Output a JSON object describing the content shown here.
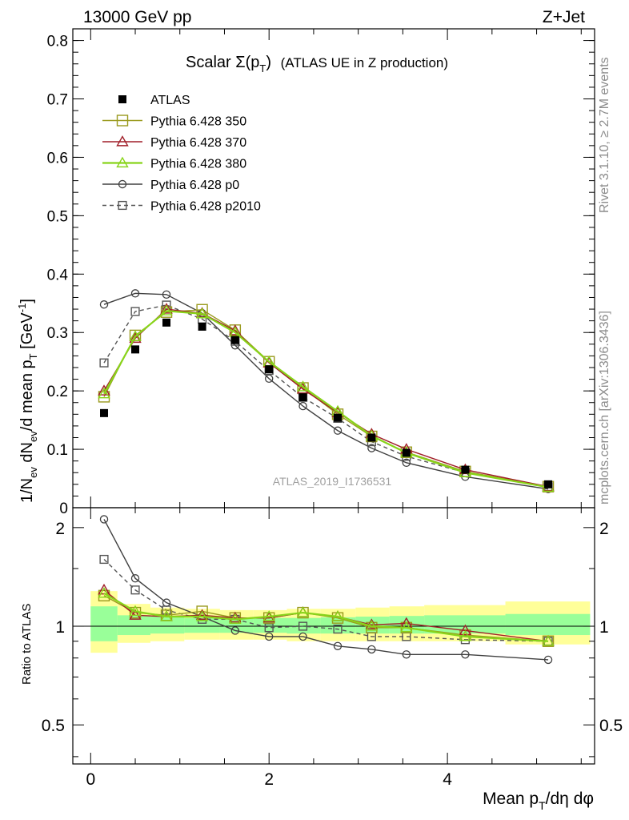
{
  "header": {
    "left": "13000 GeV pp",
    "right": "Z+Jet"
  },
  "side_labels": {
    "rivet": "Rivet 3.1.10, ≥ 2.7M events",
    "mcplots": "mcplots.cern.ch [arXiv:1306.3436]"
  },
  "analysis_id": "ATLAS_2019_I1736531",
  "chart_data": [
    {
      "type": "scatter",
      "panel": "main",
      "title_main": "Scalar Σ(p",
      "title_sub": "T",
      "title_close": ")",
      "title_rest": "(ATLAS UE in Z production)",
      "ylabel_parts": [
        "1/N",
        "ev",
        " dN",
        "ev",
        "/d mean p",
        "T",
        " [GeV",
        "-1",
        "]"
      ],
      "ylim": [
        0,
        0.82
      ],
      "xlim": [
        -0.2,
        5.65
      ],
      "yticks": [
        0,
        0.1,
        0.2,
        0.3,
        0.4,
        0.5,
        0.6,
        0.7,
        0.8
      ],
      "ytick_labels": [
        "0",
        "0.1",
        "0.2",
        "0.3",
        "0.4",
        "0.5",
        "0.6",
        "0.7",
        "0.8"
      ],
      "x": [
        0.15,
        0.5,
        0.85,
        1.25,
        1.62,
        2.0,
        2.38,
        2.77,
        3.15,
        3.54,
        4.2,
        5.13
      ],
      "series": [
        {
          "name": "ATLAS",
          "style": "data",
          "color": "#000000",
          "values": [
            0.162,
            0.271,
            0.317,
            0.31,
            0.287,
            0.237,
            0.189,
            0.154,
            0.12,
            0.094,
            0.065,
            0.04
          ]
        },
        {
          "name": "Pythia 6.428 350",
          "style": "square",
          "color": "#9a9a1e",
          "values": [
            0.19,
            0.295,
            0.335,
            0.339,
            0.304,
            0.25,
            0.205,
            0.16,
            0.122,
            0.095,
            0.062,
            0.036
          ]
        },
        {
          "name": "Pythia 6.428 370",
          "style": "triangle",
          "color": "#a01e28",
          "values": [
            0.2,
            0.29,
            0.34,
            0.333,
            0.303,
            0.248,
            0.203,
            0.163,
            0.126,
            0.1,
            0.065,
            0.036
          ]
        },
        {
          "name": "Pythia 6.428 380",
          "style": "triangle",
          "color": "#88d41a",
          "values": [
            0.195,
            0.293,
            0.337,
            0.332,
            0.3,
            0.25,
            0.207,
            0.165,
            0.123,
            0.094,
            0.06,
            0.035
          ]
        },
        {
          "name": "Pythia 6.428 p0",
          "style": "circle",
          "color": "#404040",
          "values": [
            0.348,
            0.367,
            0.365,
            0.333,
            0.278,
            0.221,
            0.174,
            0.132,
            0.102,
            0.077,
            0.053,
            0.032
          ]
        },
        {
          "name": "Pythia 6.428 p2010",
          "style": "square-dashed",
          "color": "#555555",
          "values": [
            0.248,
            0.336,
            0.347,
            0.323,
            0.285,
            0.235,
            0.189,
            0.153,
            0.113,
            0.088,
            0.06,
            0.036
          ]
        }
      ],
      "legend_position": "top-left"
    },
    {
      "type": "scatter",
      "panel": "ratio",
      "ylabel": "Ratio to ATLAS",
      "log_scale": true,
      "ylim": [
        0.38,
        2.3
      ],
      "yticks": [
        0.5,
        1,
        2
      ],
      "ytick_labels": [
        "0.5",
        "1",
        "2"
      ],
      "xlabel_parts": [
        "Mean p",
        "T",
        "/dη dφ"
      ],
      "xticks": [
        0,
        2,
        4
      ],
      "xtick_labels": [
        "0",
        "2",
        "4"
      ],
      "bands": [
        {
          "x0": 0.0,
          "x1": 0.3,
          "yellow": [
            0.83,
            1.28
          ],
          "green": [
            0.9,
            1.15
          ]
        },
        {
          "x0": 0.3,
          "x1": 0.67,
          "yellow": [
            0.89,
            1.17
          ],
          "green": [
            0.94,
            1.08
          ]
        },
        {
          "x0": 0.67,
          "x1": 1.05,
          "yellow": [
            0.9,
            1.14
          ],
          "green": [
            0.95,
            1.07
          ]
        },
        {
          "x0": 1.05,
          "x1": 1.45,
          "yellow": [
            0.91,
            1.13
          ],
          "green": [
            0.955,
            1.06
          ]
        },
        {
          "x0": 1.45,
          "x1": 1.82,
          "yellow": [
            0.91,
            1.12
          ],
          "green": [
            0.955,
            1.06
          ]
        },
        {
          "x0": 1.82,
          "x1": 2.2,
          "yellow": [
            0.91,
            1.12
          ],
          "green": [
            0.955,
            1.06
          ]
        },
        {
          "x0": 2.2,
          "x1": 2.58,
          "yellow": [
            0.9,
            1.13
          ],
          "green": [
            0.95,
            1.06
          ]
        },
        {
          "x0": 2.58,
          "x1": 2.97,
          "yellow": [
            0.9,
            1.13
          ],
          "green": [
            0.95,
            1.065
          ]
        },
        {
          "x0": 2.97,
          "x1": 3.35,
          "yellow": [
            0.9,
            1.14
          ],
          "green": [
            0.95,
            1.07
          ]
        },
        {
          "x0": 3.35,
          "x1": 3.74,
          "yellow": [
            0.9,
            1.15
          ],
          "green": [
            0.95,
            1.075
          ]
        },
        {
          "x0": 3.74,
          "x1": 4.65,
          "yellow": [
            0.9,
            1.16
          ],
          "green": [
            0.95,
            1.08
          ]
        },
        {
          "x0": 4.65,
          "x1": 5.6,
          "yellow": [
            0.88,
            1.19
          ],
          "green": [
            0.94,
            1.09
          ]
        }
      ],
      "x": [
        0.15,
        0.5,
        0.85,
        1.25,
        1.62,
        2.0,
        2.38,
        2.77,
        3.15,
        3.54,
        4.2,
        5.13
      ],
      "series": [
        {
          "name": "Pythia 6.428 350",
          "style": "square",
          "color": "#9a9a1e",
          "values": [
            1.24,
            1.1,
            1.08,
            1.11,
            1.06,
            1.06,
            1.1,
            1.06,
            0.99,
            0.99,
            0.94,
            0.9
          ]
        },
        {
          "name": "Pythia 6.428 370",
          "style": "triangle",
          "color": "#a01e28",
          "values": [
            1.29,
            1.08,
            1.07,
            1.08,
            1.06,
            1.06,
            1.1,
            1.07,
            1.01,
            1.02,
            0.97,
            0.9
          ]
        },
        {
          "name": "Pythia 6.428 380",
          "style": "triangle",
          "color": "#88d41a",
          "values": [
            1.26,
            1.11,
            1.07,
            1.07,
            1.05,
            1.07,
            1.1,
            1.07,
            1.0,
            0.99,
            0.93,
            0.9
          ]
        },
        {
          "name": "Pythia 6.428 p0",
          "style": "circle",
          "color": "#404040",
          "values": [
            2.12,
            1.4,
            1.18,
            1.07,
            0.97,
            0.93,
            0.93,
            0.87,
            0.85,
            0.82,
            0.82,
            0.79
          ]
        },
        {
          "name": "Pythia 6.428 p2010",
          "style": "square-dashed",
          "color": "#555555",
          "values": [
            1.6,
            1.29,
            1.12,
            1.05,
            1.05,
            0.99,
            1.0,
            0.98,
            0.93,
            0.93,
            0.91,
            0.9
          ]
        }
      ]
    }
  ]
}
